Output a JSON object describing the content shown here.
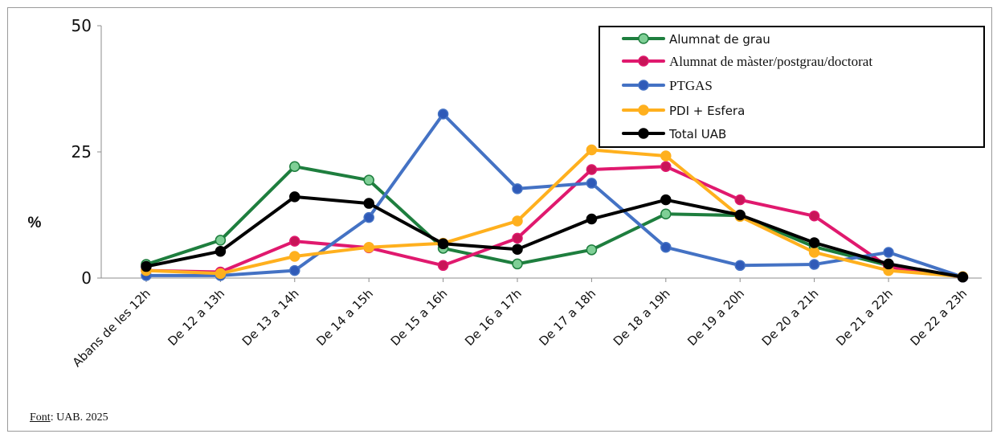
{
  "chart_data": {
    "type": "line",
    "ylabel": "%",
    "ylim": [
      0,
      50
    ],
    "yticks": [
      "0",
      "25",
      "50"
    ],
    "grid": false,
    "legend_position": "top-right",
    "categories": [
      "Abans de les 12h",
      "De 12 a 13h",
      "De 13 a 14h",
      "De 14 a 15h",
      "De 15 a 16h",
      "De 16 a 17h",
      "De 17 a 18h",
      "De 18 a 19h",
      "De 19 a 20h",
      "De 20 a 21h",
      "De 21 a 22h",
      "De 22 a 23h"
    ],
    "series": [
      {
        "name": "Alumnat de grau",
        "color": "#1e7e3e",
        "marker_fill": "#7fcf96",
        "values": [
          2.7,
          7.5,
          22.1,
          19.4,
          5.9,
          2.8,
          5.6,
          12.7,
          12.4,
          6.2,
          2.5,
          0.2
        ]
      },
      {
        "name": "Alumnat de màster/postgrau/doctorat",
        "color": "#e0196e",
        "marker_fill": "#c81558",
        "values": [
          1.5,
          1.2,
          7.3,
          6.0,
          2.5,
          7.9,
          21.5,
          22.1,
          15.5,
          12.3,
          2.2,
          0.2
        ]
      },
      {
        "name": "PTGAS",
        "color": "#4472c4",
        "marker_fill": "#2f5ab8",
        "values": [
          0.5,
          0.5,
          1.5,
          12.0,
          32.5,
          17.7,
          18.8,
          6.1,
          2.5,
          2.7,
          5.1,
          0.2
        ]
      },
      {
        "name": "PDI + Esfera",
        "color": "#ffb01e",
        "marker_fill": "#ffb01e",
        "values": [
          1.5,
          0.9,
          4.3,
          6.1,
          6.9,
          11.3,
          25.4,
          24.2,
          12.2,
          5.1,
          1.5,
          0.3
        ]
      },
      {
        "name": "Total UAB",
        "color": "#000000",
        "marker_fill": "#000000",
        "values": [
          2.3,
          5.3,
          16.1,
          14.8,
          6.8,
          5.7,
          11.7,
          15.5,
          12.5,
          7.0,
          2.8,
          0.2
        ]
      }
    ]
  },
  "source": {
    "label": "Font",
    "text": ": UAB. 2025"
  }
}
